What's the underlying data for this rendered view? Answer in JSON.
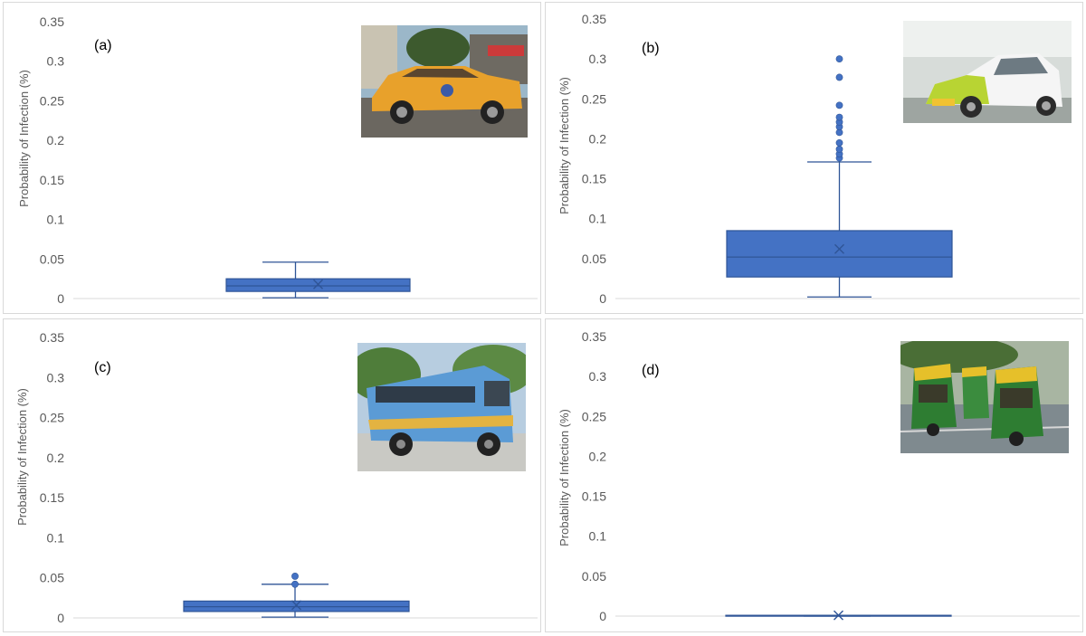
{
  "chart_data": [
    {
      "type": "box",
      "panel_label": "(a)",
      "ylabel": "Probability of Infection (%)",
      "ylim": [
        0,
        0.35
      ],
      "yticks": [
        "0",
        "0.05",
        "0.1",
        "0.15",
        "0.2",
        "0.25",
        "0.3",
        "0.35"
      ],
      "photo": "yellow-taxi-photo",
      "box": {
        "whisker_low": 0.001,
        "q1": 0.009,
        "median": 0.016,
        "mean": 0.018,
        "q3": 0.025,
        "whisker_high": 0.046
      },
      "outliers": []
    },
    {
      "type": "box",
      "panel_label": "(b)",
      "ylabel": "Probability of Infection (%)",
      "ylim": [
        0,
        0.35
      ],
      "yticks": [
        "0",
        "0.05",
        "0.1",
        "0.15",
        "0.2",
        "0.25",
        "0.3",
        "0.35"
      ],
      "photo": "app-cab-photo",
      "box": {
        "whisker_low": 0.002,
        "q1": 0.027,
        "median": 0.052,
        "mean": 0.062,
        "q3": 0.085,
        "whisker_high": 0.171
      },
      "outliers": [
        0.176,
        0.181,
        0.187,
        0.195,
        0.208,
        0.215,
        0.221,
        0.227,
        0.242,
        0.277,
        0.3
      ]
    },
    {
      "type": "box",
      "panel_label": "(c)",
      "ylabel": "Probability of Infection (%)",
      "ylim": [
        0,
        0.35
      ],
      "yticks": [
        "0",
        "0.05",
        "0.1",
        "0.15",
        "0.2",
        "0.25",
        "0.3",
        "0.35"
      ],
      "photo": "bus-photo",
      "box": {
        "whisker_low": 0.001,
        "q1": 0.008,
        "median": 0.014,
        "mean": 0.016,
        "q3": 0.021,
        "whisker_high": 0.042
      },
      "outliers": [
        0.042,
        0.052
      ]
    },
    {
      "type": "box",
      "panel_label": "(d)",
      "ylabel": "Probability of Infection (%)",
      "ylim": [
        0,
        0.35
      ],
      "yticks": [
        "0",
        "0.05",
        "0.1",
        "0.15",
        "0.2",
        "0.25",
        "0.3",
        "0.35"
      ],
      "photo": "auto-rickshaw-photo",
      "box": {
        "whisker_low": 0.0,
        "q1": 0.0,
        "median": 0.0005,
        "mean": 0.001,
        "q3": 0.001,
        "whisker_high": 0.001
      },
      "outliers": []
    }
  ],
  "colors": {
    "box_fill": "#4472c4",
    "box_edge": "#2f5597",
    "whisker": "#2f5597",
    "axis": "#d9d9d9",
    "tick_text": "#595959"
  }
}
